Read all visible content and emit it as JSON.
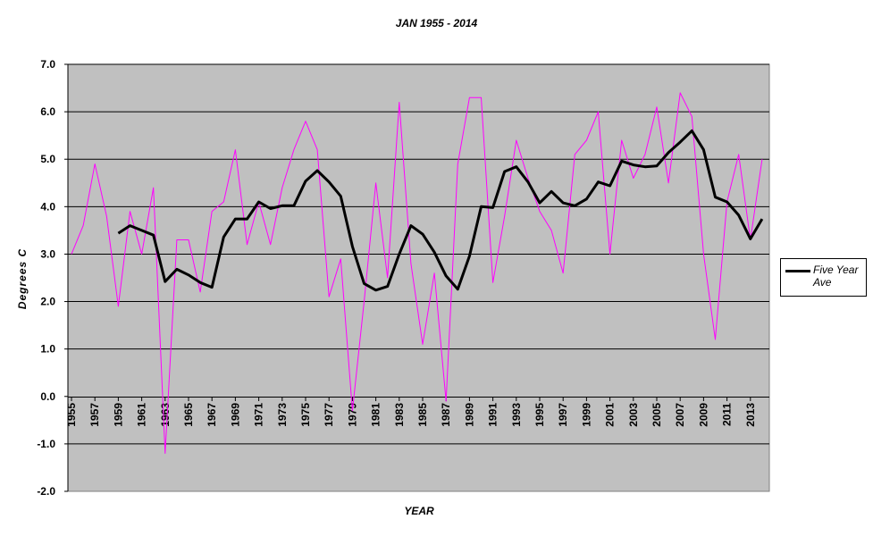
{
  "chart_data": {
    "type": "line",
    "title": "JAN 1955 - 2014",
    "xlabel": "YEAR",
    "ylabel": "Degrees C",
    "ylim": [
      -2.0,
      7.0
    ],
    "yticks": [
      "7.0",
      "6.0",
      "5.0",
      "4.0",
      "3.0",
      "2.0",
      "1.0",
      "0.0",
      "-1.0",
      "-2.0"
    ],
    "x": [
      1955,
      1956,
      1957,
      1958,
      1959,
      1960,
      1961,
      1962,
      1963,
      1964,
      1965,
      1966,
      1967,
      1968,
      1969,
      1970,
      1971,
      1972,
      1973,
      1974,
      1975,
      1976,
      1977,
      1978,
      1979,
      1980,
      1981,
      1982,
      1983,
      1984,
      1985,
      1986,
      1987,
      1988,
      1989,
      1990,
      1991,
      1992,
      1993,
      1994,
      1995,
      1996,
      1997,
      1998,
      1999,
      2000,
      2001,
      2002,
      2003,
      2004,
      2005,
      2006,
      2007,
      2008,
      2009,
      2010,
      2011,
      2012,
      2013,
      2014
    ],
    "xtick_labels": [
      "1955",
      "1957",
      "1959",
      "1961",
      "1963",
      "1965",
      "1967",
      "1969",
      "1971",
      "1973",
      "1975",
      "1977",
      "1979",
      "1981",
      "1983",
      "1985",
      "1987",
      "1989",
      "1991",
      "1993",
      "1995",
      "1997",
      "1999",
      "2001",
      "2003",
      "2005",
      "2007",
      "2009",
      "2011",
      "2013"
    ],
    "grid": "horizontal",
    "background": "#c0c0c0",
    "legend_position": "right",
    "series": [
      {
        "color": "#ff00ff",
        "values": [
          3.0,
          3.6,
          4.9,
          3.8,
          1.9,
          3.9,
          3.0,
          4.4,
          -1.2,
          3.3,
          3.3,
          2.2,
          3.9,
          4.1,
          5.2,
          3.2,
          4.1,
          3.2,
          4.4,
          5.2,
          5.8,
          5.2,
          2.1,
          2.9,
          -0.3,
          2.0,
          4.5,
          2.5,
          6.2,
          2.8,
          1.1,
          2.6,
          -0.1,
          4.9,
          6.3,
          6.3,
          2.4,
          3.8,
          5.4,
          4.6,
          3.9,
          3.5,
          2.6,
          5.1,
          5.4,
          6.0,
          3.0,
          5.4,
          4.6,
          5.1,
          6.1,
          4.5,
          6.4,
          5.9,
          3.0,
          1.2,
          4.1,
          5.1,
          3.3,
          5.0
        ]
      },
      {
        "name": "Five Year Ave",
        "color": "#000000",
        "values": [
          null,
          null,
          null,
          null,
          3.44,
          3.6,
          3.5,
          3.4,
          2.42,
          2.68,
          2.56,
          2.4,
          2.3,
          3.36,
          3.74,
          3.74,
          4.1,
          3.96,
          4.02,
          4.02,
          4.54,
          4.76,
          4.52,
          4.22,
          3.16,
          2.38,
          2.24,
          2.32,
          3.0,
          3.6,
          3.42,
          3.04,
          2.54,
          2.26,
          2.96,
          4.0,
          3.98,
          4.74,
          4.84,
          4.52,
          4.08,
          4.32,
          4.08,
          4.02,
          4.16,
          4.52,
          4.44,
          4.96,
          4.88,
          4.84,
          4.86,
          5.14,
          5.36,
          5.6,
          5.2,
          4.2,
          4.1,
          3.82,
          3.32,
          3.74
        ]
      }
    ]
  }
}
